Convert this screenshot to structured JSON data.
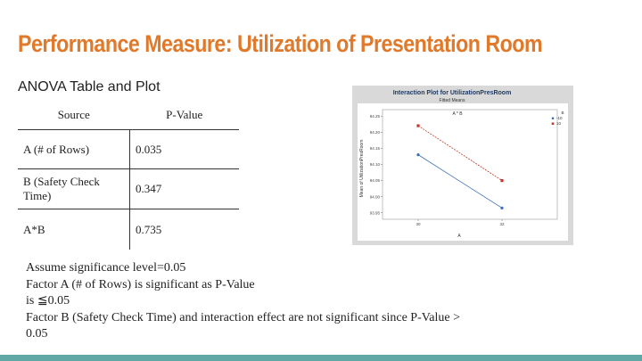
{
  "slide": {
    "title": "Performance Measure: Utilization of Presentation Room",
    "subtitle": "ANOVA Table and Plot",
    "accent_color": "#e0792a",
    "bottom_bar_color": "#5fa8a6"
  },
  "table": {
    "headers": [
      "Source",
      "P-Value"
    ],
    "rows": [
      {
        "source": "A (# of Rows)",
        "p_value": "0.035"
      },
      {
        "source": "B (Safety Check Time)",
        "p_value": "0.347"
      },
      {
        "source": "A*B",
        "p_value": "0.735"
      }
    ]
  },
  "notes": {
    "line1": "Assume significance level=0.05",
    "line2": "Factor A (# of Rows) is significant as P-Value",
    "line3": "is ≦0.05",
    "line4": "Factor B (Safety Check Time) and interaction effect are not significant since P-Value >",
    "line5": "0.05"
  },
  "chart_data": {
    "type": "line",
    "title": "Interaction Plot for UtilizationPresRoom",
    "subtitle": "Fitted Means",
    "panel_label": "A * B",
    "xlabel": "A",
    "ylabel": "Mean of UtilizationPresRoom",
    "categories": [
      "30",
      "32"
    ],
    "y_ticks": [
      "94.25",
      "94.20",
      "94.15",
      "94.10",
      "94.05",
      "94.00",
      "93.95"
    ],
    "ylim": [
      93.93,
      94.27
    ],
    "legend_title": "B",
    "legend_position": "top-right",
    "grid": false,
    "series": [
      {
        "name": "-10",
        "color": "#3b6fb6",
        "marker": "circle",
        "values": [
          94.13,
          93.965
        ]
      },
      {
        "name": "10",
        "color": "#c0392b",
        "marker": "square",
        "values": [
          94.22,
          94.05
        ]
      }
    ]
  }
}
